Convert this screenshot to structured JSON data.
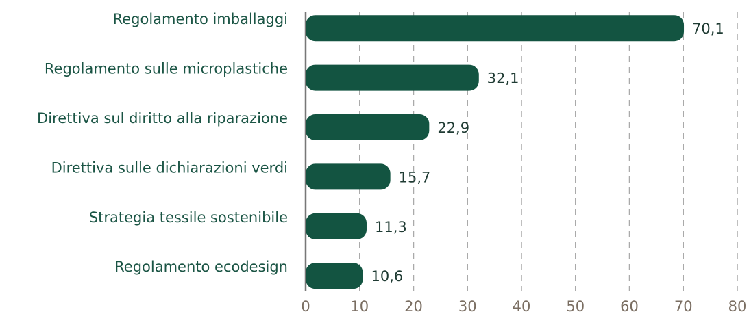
{
  "chart_data": {
    "type": "bar",
    "orientation": "horizontal",
    "categories": [
      "Regolamento imballaggi",
      "Regolamento sulle microplastiche",
      "Direttiva sul diritto alla riparazione",
      "Direttiva sulle dichiarazioni verdi",
      "Strategia tessile sostenibile",
      "Regolamento ecodesign"
    ],
    "values": [
      70.1,
      32.1,
      22.9,
      15.7,
      11.3,
      10.6
    ],
    "value_labels": [
      "70,1",
      "32,1",
      "22,9",
      "15,7",
      "11,3",
      "10,6"
    ],
    "color": "#135441",
    "xlim": [
      0,
      80
    ],
    "xticks": [
      0,
      10,
      20,
      30,
      40,
      50,
      60,
      70,
      80
    ],
    "grid": true
  }
}
